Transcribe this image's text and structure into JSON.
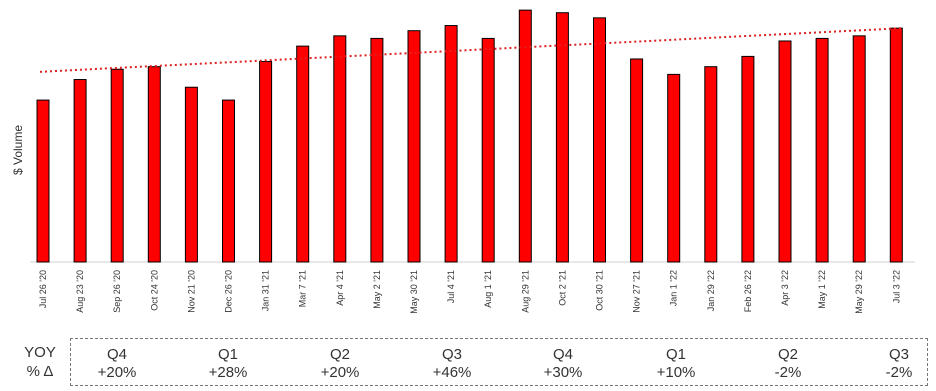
{
  "chart_data": {
    "type": "bar",
    "ylabel": "$ Volume",
    "ylim": [
      0,
      100
    ],
    "categories": [
      "Jul 26 '20",
      "Aug 23 '20",
      "Sep 26 '20",
      "Oct 24 '20",
      "Nov 21 '20",
      "Dec 26 '20",
      "Jan 31 '21",
      "Mar 7 '21",
      "Apr 4 '21",
      "May 2 '21",
      "May 30 '21",
      "Jul 4 '21",
      "Aug 1 '21",
      "Aug 29 '21",
      "Oct 2 '21",
      "Oct 30 '21",
      "Nov 27 '21",
      "Jan 1 '22",
      "Jan 29 '22",
      "Feb 26 '22",
      "Apr 3 '22",
      "May 1 '22",
      "May 29 '22",
      "Jul 3 '22"
    ],
    "series": [
      {
        "values": [
          63,
          71,
          75,
          76,
          68,
          63,
          78,
          84,
          88,
          87,
          90,
          92,
          87,
          98,
          97,
          95,
          79,
          73,
          76,
          80,
          86,
          87,
          88,
          91
        ],
        "color": "#ff0000"
      }
    ],
    "trendline": {
      "start": 74,
      "end": 91,
      "color": "#e02020",
      "style": "dotted"
    }
  },
  "yoy": {
    "label_line1": "YOY",
    "label_line2": "% Δ",
    "quarters": [
      {
        "q": "Q4",
        "pct": "+20%"
      },
      {
        "q": "Q1",
        "pct": "+28%"
      },
      {
        "q": "Q2",
        "pct": "+20%"
      },
      {
        "q": "Q3",
        "pct": "+46%"
      },
      {
        "q": "Q4",
        "pct": "+30%"
      },
      {
        "q": "Q1",
        "pct": "+10%"
      },
      {
        "q": "Q2",
        "pct": "-2%"
      },
      {
        "q": "Q3",
        "pct": "-2%"
      }
    ]
  }
}
